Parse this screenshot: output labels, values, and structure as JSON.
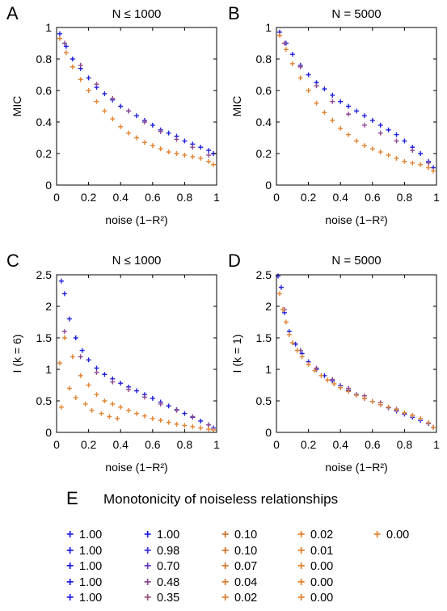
{
  "panels": {
    "A": {
      "letter": "A",
      "title": "N ≤ 1000"
    },
    "B": {
      "letter": "B",
      "title": "N = 5000"
    },
    "C": {
      "letter": "C",
      "title": "N ≤ 1000"
    },
    "D": {
      "letter": "D",
      "title": "N = 5000"
    }
  },
  "legend": {
    "letter": "E",
    "title": "Monotonicity of noiseless relationships",
    "columns": [
      [
        {
          "label": "1.00",
          "color": "#1f1fe0"
        },
        {
          "label": "1.00",
          "color": "#1f1fe0"
        },
        {
          "label": "1.00",
          "color": "#1f1fe0"
        },
        {
          "label": "1.00",
          "color": "#1f1fe0"
        },
        {
          "label": "1.00",
          "color": "#1f1fe0"
        }
      ],
      [
        {
          "label": "1.00",
          "color": "#1f1fe0"
        },
        {
          "label": "0.98",
          "color": "#3a2fd0"
        },
        {
          "label": "0.70",
          "color": "#6a3ab8"
        },
        {
          "label": "0.48",
          "color": "#8a4a90"
        },
        {
          "label": "0.35",
          "color": "#9a5278"
        }
      ],
      [
        {
          "label": "0.10",
          "color": "#d0742e"
        },
        {
          "label": "0.10",
          "color": "#d0742e"
        },
        {
          "label": "0.07",
          "color": "#d87a30"
        },
        {
          "label": "0.04",
          "color": "#dc7e30"
        },
        {
          "label": "0.02",
          "color": "#e08030"
        }
      ],
      [
        {
          "label": "0.02",
          "color": "#e08030"
        },
        {
          "label": "0.01",
          "color": "#e08030"
        },
        {
          "label": "0.00",
          "color": "#e38330"
        },
        {
          "label": "0.00",
          "color": "#e38330"
        },
        {
          "label": "0.00",
          "color": "#e38330"
        }
      ],
      [
        {
          "label": "0.00",
          "color": "#e38330"
        }
      ]
    ]
  },
  "chart_data": [
    {
      "panel": "A",
      "type": "scatter",
      "title": "N ≤ 1000",
      "xlabel": "noise (1−R²)",
      "ylabel": "MIC",
      "xlim": [
        0,
        1
      ],
      "ylim": [
        0,
        1
      ],
      "xticks": [
        "0",
        "0.2",
        "0.4",
        "0.6",
        "0.8",
        "1"
      ],
      "yticks": [
        "0",
        "0.2",
        "0.4",
        "0.6",
        "0.8",
        "1"
      ],
      "series": [
        {
          "color": "#1f1fe0",
          "x": [
            0.02,
            0.06,
            0.1,
            0.15,
            0.2,
            0.25,
            0.3,
            0.35,
            0.4,
            0.45,
            0.5,
            0.55,
            0.6,
            0.65,
            0.7,
            0.75,
            0.8,
            0.85,
            0.9,
            0.95,
            0.98
          ],
          "y": [
            0.96,
            0.88,
            0.8,
            0.74,
            0.68,
            0.62,
            0.58,
            0.54,
            0.5,
            0.47,
            0.44,
            0.41,
            0.38,
            0.35,
            0.33,
            0.31,
            0.28,
            0.26,
            0.24,
            0.22,
            0.2
          ]
        },
        {
          "color": "#8a4a90",
          "x": [
            0.05,
            0.15,
            0.25,
            0.35,
            0.45,
            0.55,
            0.65,
            0.75,
            0.85,
            0.95
          ],
          "y": [
            0.9,
            0.76,
            0.64,
            0.55,
            0.47,
            0.4,
            0.34,
            0.29,
            0.24,
            0.19
          ]
        },
        {
          "color": "#e38330",
          "x": [
            0.02,
            0.06,
            0.1,
            0.15,
            0.2,
            0.25,
            0.3,
            0.35,
            0.4,
            0.45,
            0.5,
            0.55,
            0.6,
            0.65,
            0.7,
            0.75,
            0.8,
            0.85,
            0.9,
            0.95,
            0.98
          ],
          "y": [
            0.93,
            0.84,
            0.75,
            0.67,
            0.6,
            0.53,
            0.47,
            0.42,
            0.37,
            0.33,
            0.3,
            0.27,
            0.25,
            0.23,
            0.21,
            0.2,
            0.19,
            0.18,
            0.17,
            0.15,
            0.13
          ]
        }
      ]
    },
    {
      "panel": "B",
      "type": "scatter",
      "title": "N = 5000",
      "xlabel": "noise (1−R²)",
      "ylabel": "MIC",
      "xlim": [
        0,
        1
      ],
      "ylim": [
        0,
        1
      ],
      "xticks": [
        "0",
        "0.2",
        "0.4",
        "0.6",
        "0.8",
        "1"
      ],
      "yticks": [
        "0",
        "0.2",
        "0.4",
        "0.6",
        "0.8",
        "1"
      ],
      "series": [
        {
          "color": "#1f1fe0",
          "x": [
            0.02,
            0.06,
            0.1,
            0.15,
            0.2,
            0.25,
            0.3,
            0.35,
            0.4,
            0.45,
            0.5,
            0.55,
            0.6,
            0.65,
            0.7,
            0.75,
            0.8,
            0.85,
            0.9,
            0.95,
            0.98
          ],
          "y": [
            0.97,
            0.9,
            0.83,
            0.76,
            0.7,
            0.65,
            0.61,
            0.57,
            0.53,
            0.5,
            0.47,
            0.44,
            0.41,
            0.38,
            0.35,
            0.32,
            0.28,
            0.24,
            0.2,
            0.15,
            0.11
          ]
        },
        {
          "color": "#8a4a90",
          "x": [
            0.05,
            0.15,
            0.25,
            0.35,
            0.45,
            0.55,
            0.65,
            0.75,
            0.85,
            0.95
          ],
          "y": [
            0.9,
            0.75,
            0.63,
            0.53,
            0.45,
            0.38,
            0.33,
            0.28,
            0.22,
            0.14
          ]
        },
        {
          "color": "#e38330",
          "x": [
            0.02,
            0.06,
            0.1,
            0.15,
            0.2,
            0.25,
            0.3,
            0.35,
            0.4,
            0.45,
            0.5,
            0.55,
            0.6,
            0.65,
            0.7,
            0.75,
            0.8,
            0.85,
            0.9,
            0.95,
            0.98
          ],
          "y": [
            0.95,
            0.86,
            0.77,
            0.68,
            0.6,
            0.52,
            0.46,
            0.41,
            0.36,
            0.32,
            0.28,
            0.25,
            0.23,
            0.21,
            0.19,
            0.17,
            0.15,
            0.14,
            0.13,
            0.11,
            0.09
          ]
        }
      ]
    },
    {
      "panel": "C",
      "type": "scatter",
      "title": "N ≤ 1000",
      "xlabel": "noise (1−R²)",
      "ylabel": "I (k = 6)",
      "xlim": [
        0,
        1
      ],
      "ylim": [
        0,
        2.5
      ],
      "xticks": [
        "0",
        "0.2",
        "0.4",
        "0.6",
        "0.8",
        "1"
      ],
      "yticks": [
        "0",
        "0.5",
        "1",
        "1.5",
        "2",
        "2.5"
      ],
      "series": [
        {
          "color": "#1f1fe0",
          "x": [
            0.03,
            0.05,
            0.08,
            0.12,
            0.16,
            0.2,
            0.25,
            0.3,
            0.35,
            0.4,
            0.45,
            0.5,
            0.55,
            0.6,
            0.65,
            0.7,
            0.75,
            0.8,
            0.85,
            0.9,
            0.95,
            0.98
          ],
          "y": [
            2.4,
            2.2,
            1.8,
            1.5,
            1.3,
            1.15,
            1.02,
            0.92,
            0.85,
            0.78,
            0.72,
            0.66,
            0.6,
            0.54,
            0.48,
            0.42,
            0.36,
            0.3,
            0.24,
            0.18,
            0.12,
            0.07
          ]
        },
        {
          "color": "#8a4a90",
          "x": [
            0.05,
            0.15,
            0.25,
            0.35,
            0.45,
            0.55,
            0.65,
            0.75,
            0.85,
            0.95
          ],
          "y": [
            1.6,
            1.2,
            0.95,
            0.8,
            0.68,
            0.56,
            0.45,
            0.35,
            0.25,
            0.12
          ]
        },
        {
          "color": "#e38330",
          "x": [
            0.02,
            0.03,
            0.05,
            0.08,
            0.1,
            0.12,
            0.15,
            0.18,
            0.2,
            0.22,
            0.25,
            0.28,
            0.3,
            0.33,
            0.35,
            0.38,
            0.4,
            0.45,
            0.5,
            0.55,
            0.6,
            0.65,
            0.7,
            0.75,
            0.8,
            0.85,
            0.9,
            0.95,
            0.98
          ],
          "y": [
            1.1,
            0.4,
            1.5,
            0.7,
            1.2,
            0.55,
            0.9,
            0.45,
            0.75,
            0.35,
            0.6,
            0.3,
            0.5,
            0.25,
            0.45,
            0.22,
            0.4,
            0.35,
            0.3,
            0.26,
            0.22,
            0.19,
            0.16,
            0.13,
            0.11,
            0.09,
            0.07,
            0.05,
            0.04
          ]
        }
      ]
    },
    {
      "panel": "D",
      "type": "scatter",
      "title": "N = 5000",
      "xlabel": "noise (1−R²)",
      "ylabel": "I (k = 1)",
      "xlim": [
        0,
        1
      ],
      "ylim": [
        0,
        2.5
      ],
      "xticks": [
        "0",
        "0.2",
        "0.4",
        "0.6",
        "0.8",
        "1"
      ],
      "yticks": [
        "0",
        "0.5",
        "1",
        "1.5",
        "2",
        "2.5"
      ],
      "series": [
        {
          "color": "#1f1fe0",
          "x": [
            0.01,
            0.03,
            0.05,
            0.08,
            0.12,
            0.16,
            0.2,
            0.25,
            0.3,
            0.35,
            0.4,
            0.45,
            0.5,
            0.55,
            0.6,
            0.65,
            0.7,
            0.75,
            0.8,
            0.85,
            0.9,
            0.95,
            0.98
          ],
          "y": [
            2.48,
            2.3,
            1.9,
            1.6,
            1.4,
            1.25,
            1.12,
            1.0,
            0.9,
            0.82,
            0.74,
            0.67,
            0.6,
            0.54,
            0.49,
            0.44,
            0.39,
            0.34,
            0.29,
            0.24,
            0.19,
            0.14,
            0.08
          ]
        },
        {
          "color": "#8a4a90",
          "x": [
            0.05,
            0.15,
            0.25,
            0.35,
            0.45,
            0.55,
            0.65,
            0.75,
            0.85,
            0.95
          ],
          "y": [
            1.95,
            1.3,
            1.02,
            0.84,
            0.7,
            0.58,
            0.47,
            0.37,
            0.27,
            0.15
          ]
        },
        {
          "color": "#e38330",
          "x": [
            0.02,
            0.04,
            0.06,
            0.08,
            0.1,
            0.13,
            0.16,
            0.2,
            0.24,
            0.28,
            0.32,
            0.36,
            0.4,
            0.45,
            0.5,
            0.55,
            0.6,
            0.65,
            0.7,
            0.75,
            0.8,
            0.85,
            0.9,
            0.95,
            0.98
          ],
          "y": [
            2.2,
            1.95,
            1.75,
            1.55,
            1.42,
            1.3,
            1.2,
            1.08,
            0.98,
            0.9,
            0.83,
            0.77,
            0.71,
            0.65,
            0.59,
            0.54,
            0.49,
            0.44,
            0.4,
            0.36,
            0.31,
            0.27,
            0.22,
            0.15,
            0.08
          ]
        }
      ]
    }
  ]
}
